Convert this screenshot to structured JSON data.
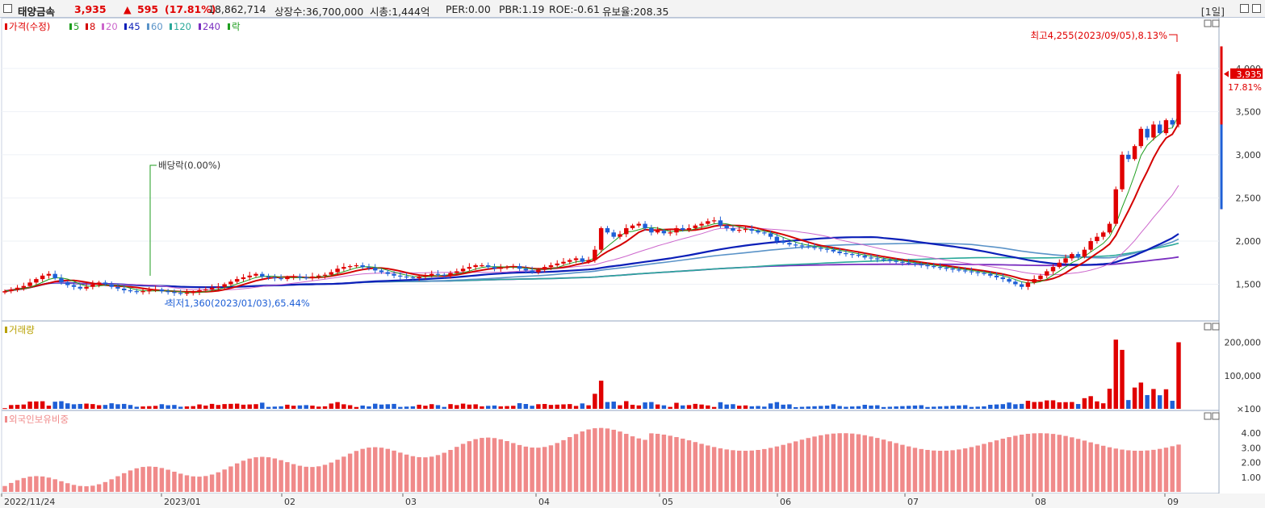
{
  "header": {
    "stock_name": "태양금속",
    "price": "3,935",
    "change_arrow": "▲",
    "change": "595",
    "change_pct": "(17.81%)",
    "volume": "18,862,714",
    "listed_shares": "상장수:36,700,000",
    "market_cap": "시총:1,444억",
    "per": "PER:0.00",
    "pbr": "PBR:1.19",
    "roe": "ROE:-0.61",
    "float_ratio": "유보율:208.35",
    "period": "[1일]"
  },
  "colors": {
    "up": "#e00000",
    "down": "#1e5fd6",
    "ma5": "#1f9e1f",
    "ma8": "#d40000",
    "ma20": "#cc66cc",
    "ma45": "#0b1fb8",
    "ma60": "#5a93c8",
    "ma120": "#2aa89a",
    "ma240": "#7a2fc0",
    "foreign": "#f08a8a"
  },
  "legend": [
    {
      "label": "가격(수정)",
      "color": "#e00000"
    },
    {
      "label": "5",
      "color": "#1f9e1f"
    },
    {
      "label": "8",
      "color": "#d40000"
    },
    {
      "label": "20",
      "color": "#cc66cc"
    },
    {
      "label": "45",
      "color": "#0b1fb8"
    },
    {
      "label": "60",
      "color": "#5a93c8"
    },
    {
      "label": "120",
      "color": "#2aa89a"
    },
    {
      "label": "240",
      "color": "#7a2fc0"
    },
    {
      "label": "락",
      "color": "#1f9e1f"
    }
  ],
  "annotations": {
    "high": "최고4,255(2023/09/05),8.13%",
    "low": "최저1,360(2023/01/03),65.44%",
    "dividend": "배당락(0.00%)",
    "current_price": "3,935",
    "current_pct": "17.81%"
  },
  "panels": {
    "volume_title": "거래량",
    "foreign_title": "외국인보유비중"
  },
  "chart_data": [
    {
      "type": "candlestick",
      "title": "가격(수정)",
      "ylim": [
        1150,
        4400
      ],
      "yticks": [
        1500,
        2000,
        2500,
        3000,
        3500,
        4000
      ],
      "ytick_labels": [
        "1,500",
        "2,000",
        "2,500",
        "3,000",
        "3,500",
        "4,000"
      ],
      "x_labels": [
        "2022/11/24",
        "2023/01",
        "02",
        "03",
        "04",
        "05",
        "06",
        "07",
        "08",
        "09"
      ],
      "close": [
        1420,
        1440,
        1460,
        1480,
        1520,
        1560,
        1600,
        1620,
        1570,
        1520,
        1490,
        1470,
        1450,
        1470,
        1500,
        1520,
        1500,
        1470,
        1450,
        1430,
        1420,
        1410,
        1420,
        1430,
        1440,
        1420,
        1410,
        1400,
        1390,
        1400,
        1410,
        1430,
        1440,
        1460,
        1470,
        1500,
        1530,
        1560,
        1580,
        1600,
        1620,
        1590,
        1580,
        1570,
        1560,
        1580,
        1590,
        1580,
        1570,
        1590,
        1600,
        1610,
        1640,
        1680,
        1700,
        1710,
        1720,
        1700,
        1690,
        1660,
        1640,
        1620,
        1600,
        1590,
        1580,
        1570,
        1590,
        1600,
        1620,
        1610,
        1600,
        1630,
        1650,
        1680,
        1700,
        1720,
        1720,
        1700,
        1680,
        1690,
        1700,
        1710,
        1680,
        1660,
        1640,
        1670,
        1700,
        1720,
        1740,
        1760,
        1780,
        1800,
        1760,
        1780,
        1900,
        2150,
        2100,
        2050,
        2080,
        2150,
        2180,
        2200,
        2150,
        2100,
        2120,
        2090,
        2100,
        2150,
        2130,
        2150,
        2180,
        2200,
        2230,
        2240,
        2180,
        2150,
        2120,
        2130,
        2140,
        2120,
        2100,
        2090,
        2050,
        2000,
        1980,
        1960,
        1950,
        1940,
        1930,
        1920,
        1910,
        1900,
        1880,
        1860,
        1850,
        1840,
        1830,
        1810,
        1800,
        1790,
        1780,
        1770,
        1760,
        1750,
        1740,
        1730,
        1720,
        1710,
        1700,
        1690,
        1680,
        1670,
        1660,
        1650,
        1640,
        1630,
        1620,
        1600,
        1580,
        1560,
        1530,
        1500,
        1470,
        1520,
        1560,
        1600,
        1650,
        1700,
        1750,
        1800,
        1850,
        1820,
        1900,
        2000,
        2050,
        2100,
        2200,
        2600,
        3000,
        2950,
        3100,
        3300,
        3200,
        3350,
        3250,
        3400,
        3350,
        3935
      ],
      "low_point": {
        "value": 1360,
        "date": "2023/01/03"
      },
      "high_point": {
        "value": 4255,
        "date": "2023/09/05"
      }
    },
    {
      "type": "bar",
      "title": "거래량",
      "yticks": [
        100,
        100000,
        200000
      ],
      "ytick_labels": [
        "×100",
        "100,000",
        "200,000"
      ],
      "ylim": [
        0,
        240000
      ]
    },
    {
      "type": "bar",
      "title": "외국인보유비중",
      "yticks": [
        1.0,
        2.0,
        3.0,
        4.0
      ],
      "ytick_labels": [
        "1.00",
        "2.00",
        "3.00",
        "4.00"
      ],
      "ylim": [
        0,
        5.0
      ]
    }
  ]
}
